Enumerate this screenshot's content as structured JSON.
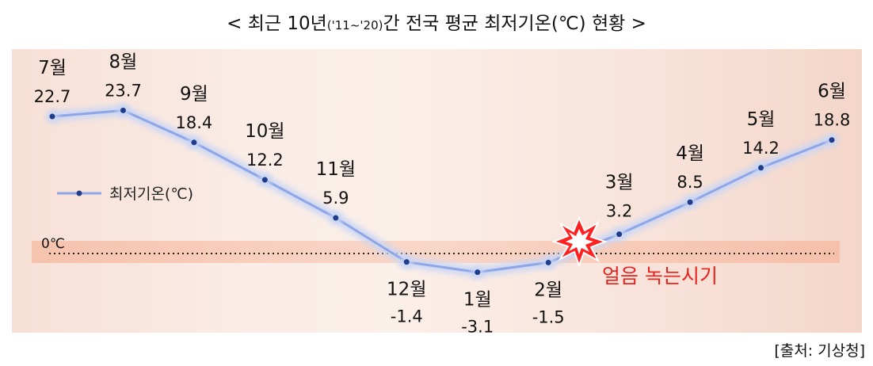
{
  "title": {
    "prefix": "<  최근 10년",
    "range": "('11~'20)",
    "suffix": "간 전국 평균 최저기온(℃) 현황  >"
  },
  "source": "[출처: 기상청]",
  "colors": {
    "line": "#8fa6e6",
    "marker": "#1f3d8a",
    "glow": "#c9d6f5",
    "zero_band": "#f6b9a0",
    "burst_fill": "#ff2020",
    "burst_text": "#e8231f"
  },
  "chart_data": {
    "type": "line",
    "categories": [
      "7월",
      "8월",
      "9월",
      "10월",
      "11월",
      "12월",
      "1월",
      "2월",
      "3월",
      "4월",
      "5월",
      "6월"
    ],
    "series": [
      {
        "name": "최저기온(℃)",
        "values": [
          22.7,
          23.7,
          18.4,
          12.2,
          5.9,
          -1.4,
          -3.1,
          -1.5,
          3.2,
          8.5,
          14.2,
          18.8
        ]
      }
    ],
    "value_labels": [
      "22.7",
      "23.7",
      "18.4",
      "12.2",
      "5.9",
      "-1.4",
      "-3.1",
      "-1.5",
      "3.2",
      "8.5",
      "14.2",
      "18.8"
    ],
    "zero_line_label": "0℃",
    "legend_label": "최저기온(℃)",
    "legend_position": "left",
    "annotation": "얼음 녹는시기",
    "ylim": [
      -3.5,
      24
    ]
  }
}
